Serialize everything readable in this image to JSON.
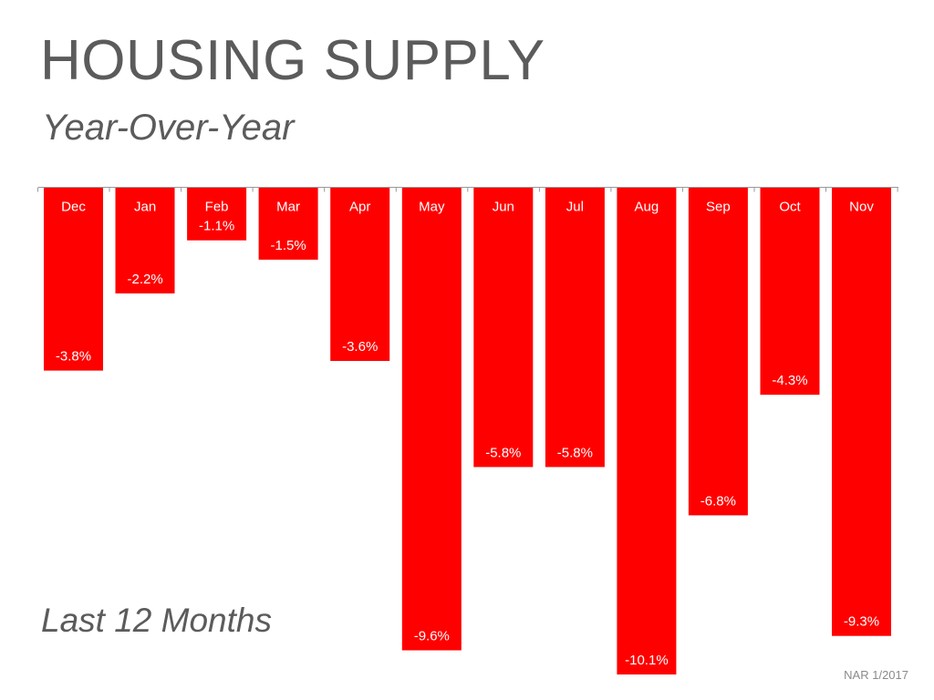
{
  "title": "HOUSING SUPPLY",
  "subtitle": "Year-Over-Year",
  "note": "Last 12 Months",
  "source": "NAR 1/2017",
  "colors": {
    "bar": "#ff0000",
    "axis": "#9a9a9a",
    "text": "#5b5b5b"
  },
  "chart_data": {
    "type": "bar",
    "categories": [
      "Dec",
      "Jan",
      "Feb",
      "Mar",
      "Apr",
      "May",
      "Jun",
      "Jul",
      "Aug",
      "Sep",
      "Oct",
      "Nov"
    ],
    "values": [
      -3.8,
      -2.2,
      -1.1,
      -1.5,
      -3.6,
      -9.6,
      -5.8,
      -5.8,
      -10.1,
      -6.8,
      -4.3,
      -9.3
    ],
    "data_labels": [
      "-3.8%",
      "-2.2%",
      "-1.1%",
      "-1.5%",
      "-3.6%",
      "-9.6%",
      "-5.8%",
      "-5.8%",
      "-10.1%",
      "-6.8%",
      "-4.3%",
      "-9.3%"
    ],
    "unit": "%",
    "ylim": [
      -10.1,
      0
    ],
    "grid": false,
    "legend": "none"
  }
}
